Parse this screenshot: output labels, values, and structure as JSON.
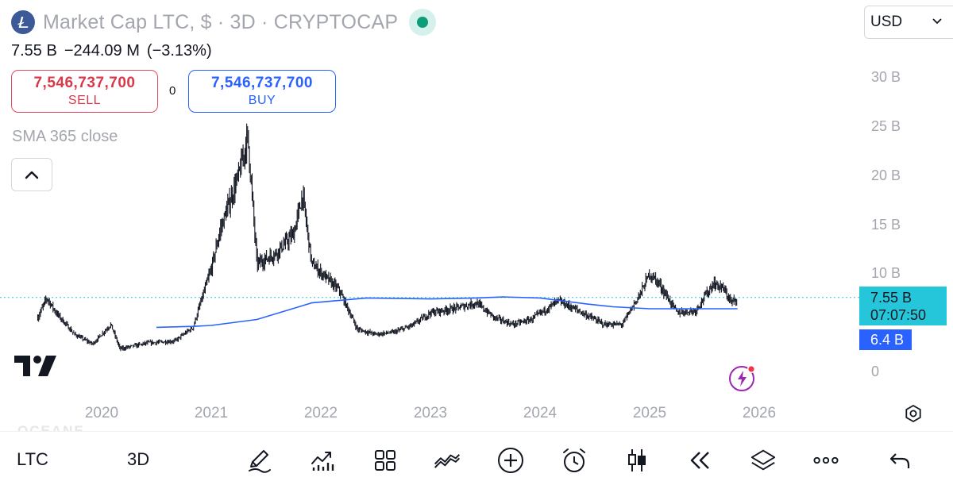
{
  "header": {
    "title": "Market Cap LTC, $ · 3D · CRYPTOCAP",
    "currency": "USD"
  },
  "quote": {
    "value": "7.55 B",
    "change": "−244.09 M",
    "change_pct": "(−3.13%)"
  },
  "trade": {
    "sell_price": "7,546,737,700",
    "sell_label": "SELL",
    "buy_price": "7,546,737,700",
    "buy_label": "BUY",
    "spread": "0"
  },
  "indicator": {
    "label": "SMA 365 close"
  },
  "price_axis": {
    "ticks": [
      "30 B",
      "25 B",
      "20 B",
      "15 B",
      "10 B",
      "0"
    ],
    "last_price": "7.55 B",
    "countdown": "07:07:50",
    "sma_value": "6.4 B"
  },
  "time_axis": {
    "ticks": [
      "2020",
      "2021",
      "2022",
      "2023",
      "2024",
      "2025",
      "2026"
    ]
  },
  "toolbar": {
    "symbol": "LTC",
    "interval": "3D",
    "icons": [
      "pencil-icon",
      "indicators-icon",
      "grid-icon",
      "compare-icon",
      "add-icon",
      "alarm-icon",
      "candles-icon",
      "replay-icon",
      "layers-icon",
      "more-icon",
      "undo-icon"
    ]
  },
  "watermark": {
    "text": "OCEANE"
  },
  "colors": {
    "price_line": "#26c6da",
    "sma_line": "#2962ff",
    "sell": "#d93849",
    "buy": "#2962ff",
    "status": "#0c9d7a"
  },
  "chart_data": {
    "type": "candlestick",
    "title": "Market Cap LTC, $ · 3D · CRYPTOCAP",
    "x_range": [
      "2019-06",
      "2026-01"
    ],
    "ylim": [
      0,
      30
    ],
    "y_unit": "B",
    "price_series": {
      "name": "Market Cap LTC",
      "points": [
        [
          "2019-06",
          5.5
        ],
        [
          "2019-07",
          7.5
        ],
        [
          "2019-08",
          6.0
        ],
        [
          "2019-10",
          3.8
        ],
        [
          "2019-12",
          2.8
        ],
        [
          "2020-02",
          4.8
        ],
        [
          "2020-03",
          2.3
        ],
        [
          "2020-06",
          2.9
        ],
        [
          "2020-09",
          3.1
        ],
        [
          "2020-11",
          4.5
        ],
        [
          "2021-01",
          10.5
        ],
        [
          "2021-02",
          14.5
        ],
        [
          "2021-04",
          20.0
        ],
        [
          "2021-05",
          24.0
        ],
        [
          "2021-06",
          11.0
        ],
        [
          "2021-08",
          12.0
        ],
        [
          "2021-10",
          14.0
        ],
        [
          "2021-11",
          18.0
        ],
        [
          "2021-12",
          11.0
        ],
        [
          "2022-03",
          8.3
        ],
        [
          "2022-05",
          4.3
        ],
        [
          "2022-07",
          3.8
        ],
        [
          "2022-09",
          4.0
        ],
        [
          "2022-11",
          4.7
        ],
        [
          "2023-01",
          6.0
        ],
        [
          "2023-04",
          6.5
        ],
        [
          "2023-06",
          7.0
        ],
        [
          "2023-08",
          5.5
        ],
        [
          "2023-10",
          4.8
        ],
        [
          "2023-12",
          5.3
        ],
        [
          "2024-03",
          7.2
        ],
        [
          "2024-05",
          6.3
        ],
        [
          "2024-08",
          4.8
        ],
        [
          "2024-10",
          4.8
        ],
        [
          "2024-12",
          8.0
        ],
        [
          "2025-01",
          10.0
        ],
        [
          "2025-02",
          9.0
        ],
        [
          "2025-04",
          6.0
        ],
        [
          "2025-06",
          6.2
        ],
        [
          "2025-08",
          9.0
        ],
        [
          "2025-09",
          8.5
        ],
        [
          "2025-10",
          7.0
        ],
        [
          "2025-10-20",
          7.55
        ]
      ]
    },
    "sma_series": {
      "name": "SMA 365 close",
      "points": [
        [
          "2020-07",
          4.5
        ],
        [
          "2020-11",
          4.6
        ],
        [
          "2021-01",
          4.7
        ],
        [
          "2021-06",
          5.3
        ],
        [
          "2021-12",
          7.0
        ],
        [
          "2022-06",
          7.5
        ],
        [
          "2023-01",
          7.4
        ],
        [
          "2023-06",
          7.5
        ],
        [
          "2023-09",
          7.6
        ],
        [
          "2024-01",
          7.5
        ],
        [
          "2024-06",
          6.9
        ],
        [
          "2024-09",
          6.6
        ],
        [
          "2025-01",
          6.4
        ],
        [
          "2025-05",
          6.4
        ],
        [
          "2025-10-20",
          6.4
        ]
      ]
    },
    "last_price": 7.55,
    "sma_last": 6.4,
    "legend": "top-left",
    "grid": false
  }
}
